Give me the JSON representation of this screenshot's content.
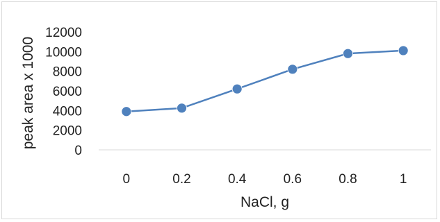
{
  "chart_data": {
    "type": "line",
    "title": "",
    "xlabel": "NaCl, g",
    "ylabel": "peak area x 1000",
    "x": [
      0,
      0.2,
      0.4,
      0.6,
      0.8,
      1
    ],
    "x_tick_labels": [
      "0",
      "0.2",
      "0.4",
      "0.6",
      "0.8",
      "1"
    ],
    "series": [
      {
        "values": [
          3900,
          4250,
          6200,
          8200,
          9800,
          10100
        ]
      }
    ],
    "ylim": [
      0,
      12000
    ],
    "y_ticks": [
      0,
      2000,
      4000,
      6000,
      8000,
      10000,
      12000
    ],
    "y_tick_labels": [
      "0",
      "2000",
      "4000",
      "6000",
      "8000",
      "10000",
      "12000"
    ],
    "grid": false,
    "legend": "none",
    "colors": {
      "series": "#4f81bd",
      "axis": "#d9d9d9",
      "text": "#222222"
    }
  }
}
